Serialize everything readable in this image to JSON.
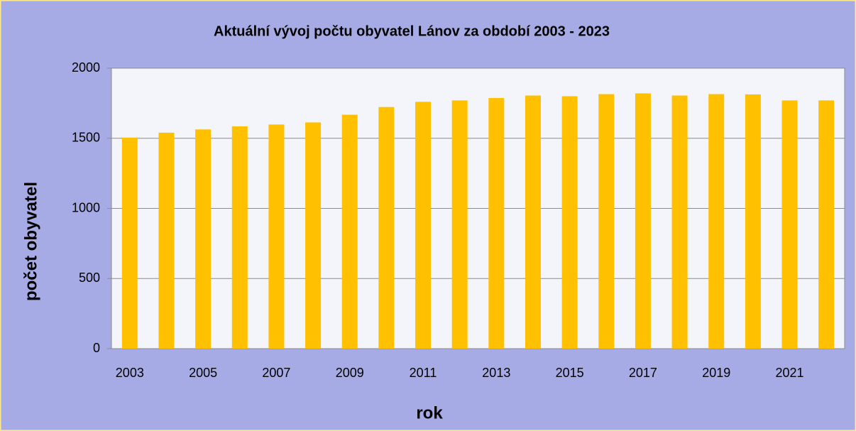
{
  "chart_data": {
    "type": "bar",
    "title": "Aktuální vývoj počtu obyvatel  Lánov za období 2003 - 2023",
    "xlabel": "rok",
    "ylabel": "počet obyvatel",
    "categories": [
      "2003",
      null,
      "2005",
      null,
      "2007",
      null,
      "2009",
      null,
      "2011",
      null,
      "2013",
      null,
      "2015",
      null,
      "2017",
      null,
      "2019",
      null,
      "2021",
      null
    ],
    "values": [
      1505,
      1540,
      1563,
      1585,
      1598,
      1613,
      1668,
      1723,
      1760,
      1770,
      1787,
      1805,
      1800,
      1815,
      1820,
      1805,
      1815,
      1813,
      1770,
      1770
    ],
    "color": "#ffc000",
    "ylim": [
      0,
      2000
    ],
    "yticks": [
      0,
      500,
      1000,
      1500,
      2000
    ],
    "grid": true
  }
}
